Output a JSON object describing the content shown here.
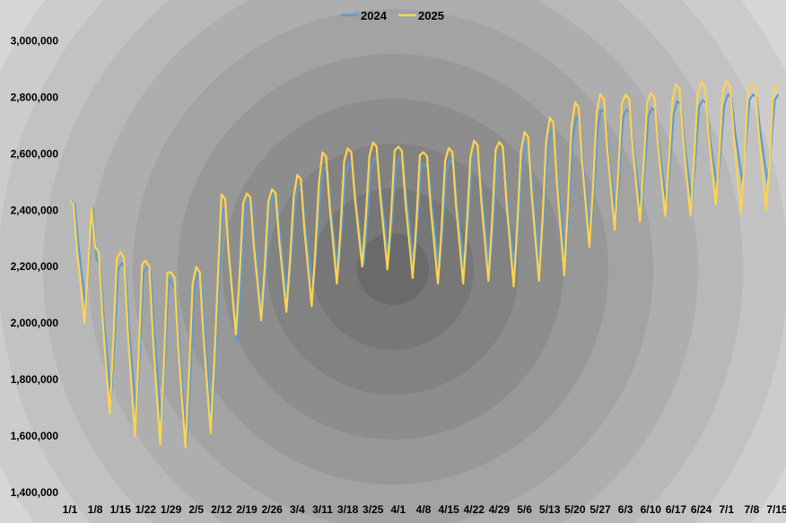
{
  "chart_data": {
    "type": "line",
    "title": "",
    "xlabel": "",
    "ylabel": "",
    "ylim": [
      1400000,
      3100000
    ],
    "grid": false,
    "legend_position": "top-center",
    "x_tick_labels": [
      "1/1",
      "1/8",
      "1/15",
      "1/22",
      "1/29",
      "2/5",
      "2/12",
      "2/19",
      "2/26",
      "3/4",
      "3/11",
      "3/18",
      "3/25",
      "4/1",
      "4/8",
      "4/15",
      "4/22",
      "4/29",
      "5/6",
      "5/13",
      "5/20",
      "5/27",
      "6/3",
      "6/10",
      "6/17",
      "6/24",
      "7/1",
      "7/8",
      "7/15"
    ],
    "y_tick_labels": [
      "1,400,000",
      "1,600,000",
      "1,800,000",
      "2,000,000",
      "2,200,000",
      "2,400,000",
      "2,600,000",
      "2,800,000",
      "3,000,000"
    ],
    "y_ticks": [
      1400000,
      1600000,
      1800000,
      2000000,
      2200000,
      2400000,
      2600000,
      2800000,
      3000000
    ],
    "weekly_pattern": [
      0.55,
      0.5,
      -0.1,
      -0.55,
      -1.0,
      -0.35,
      0.45
    ],
    "series": [
      {
        "name": "2024",
        "color": "#5b9bd5",
        "x_offset": 0.35,
        "weekly_mean": [
          2300000,
          2050000,
          2020000,
          2000000,
          1940000,
          1990000,
          2240000,
          2290000,
          2320000,
          2350000,
          2420000,
          2440000,
          2460000,
          2450000,
          2430000,
          2440000,
          2450000,
          2440000,
          2480000,
          2520000,
          2580000,
          2620000,
          2630000,
          2640000,
          2660000,
          2680000,
          2700000,
          2700000
        ],
        "weekly_amp": [
          240000,
          320000,
          350000,
          360000,
          360000,
          340000,
          300000,
          260000,
          240000,
          230000,
          240000,
          230000,
          230000,
          240000,
          240000,
          250000,
          260000,
          260000,
          280000,
          290000,
          270000,
          250000,
          230000,
          220000,
          230000,
          200000,
          200000,
          200000
        ]
      },
      {
        "name": "2025",
        "color": "#ffd34f",
        "x_offset": 0,
        "weekly_mean": [
          2280000,
          2060000,
          2020000,
          1990000,
          1960000,
          1990000,
          2280000,
          2300000,
          2320000,
          2360000,
          2440000,
          2470000,
          2480000,
          2460000,
          2440000,
          2450000,
          2470000,
          2460000,
          2490000,
          2530000,
          2600000,
          2640000,
          2650000,
          2660000,
          2680000,
          2700000,
          2690000,
          2690000
        ],
        "weekly_amp": [
          280000,
          380000,
          420000,
          420000,
          400000,
          380000,
          320000,
          290000,
          280000,
          300000,
          300000,
          270000,
          290000,
          300000,
          300000,
          310000,
          320000,
          330000,
          340000,
          360000,
          330000,
          310000,
          290000,
          280000,
          300000,
          280000,
          300000,
          290000
        ]
      }
    ]
  }
}
